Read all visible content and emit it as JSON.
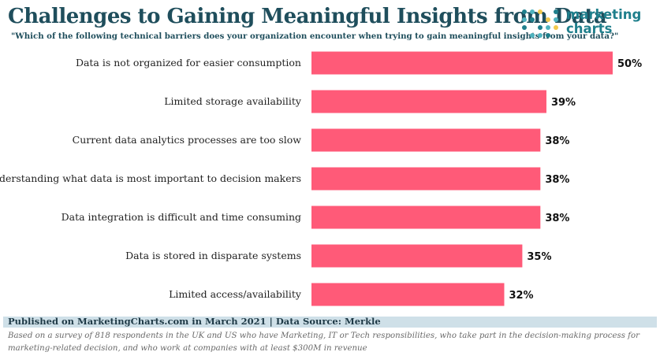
{
  "header": {
    "title": "Challenges to Gaining Meaningful Insights from Data",
    "subtitle": "\"Which of the following technical barriers does your organization encounter when trying to gain meaningful insights from your data?\"",
    "logo_line1": "marketing",
    "logo_line2": "charts"
  },
  "colors": {
    "bar": "#ff5a78",
    "title": "#1f4e5c",
    "logo_dots": [
      "#1f7f8c",
      "#4fb3bf",
      "#f2c94c"
    ]
  },
  "chart_data": {
    "type": "bar",
    "orientation": "horizontal",
    "categories": [
      "Data is not organized for easier consumption",
      "Limited storage availability",
      "Current data analytics processes are too slow",
      "Understanding what data is most important to decision makers",
      "Data integration is difficult and time consuming",
      "Data is stored in disparate systems",
      "Limited access/availability"
    ],
    "values": [
      50,
      39,
      38,
      38,
      38,
      35,
      32
    ],
    "value_labels": [
      "50%",
      "39%",
      "38%",
      "38%",
      "38%",
      "35%",
      "32%"
    ],
    "unit": "%",
    "xlim": [
      0,
      50
    ],
    "grid": false,
    "legend": "none"
  },
  "footer": {
    "source": "Published on MarketingCharts.com in March 2021 | Data Source: Merkle",
    "note": "Based on a survey of 818 respondents in the UK and US who have Marketing, IT or Tech responsibilities, who take part in the decision-making process for marketing-related decision, and who work at companies with at least $300M in revenue"
  }
}
